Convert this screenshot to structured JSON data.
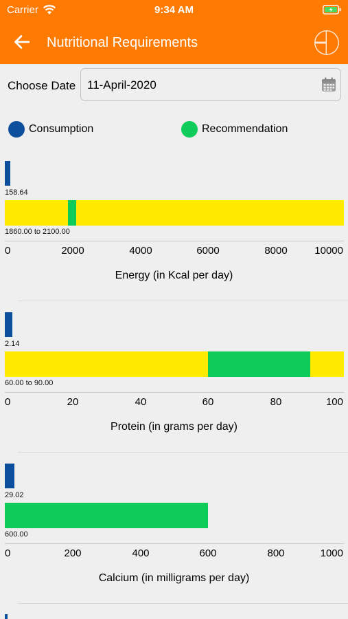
{
  "status_bar": {
    "carrier": "Carrier",
    "time": "9:34 AM"
  },
  "header": {
    "title": "Nutritional Requirements"
  },
  "date_picker": {
    "label": "Choose Date",
    "value": "11-April-2020"
  },
  "legend": {
    "consumption": "Consumption",
    "recommendation": "Recommendation"
  },
  "colors": {
    "header": "#ff7a00",
    "consumption": "#0d4f9c",
    "recommendation": "#0fcc5a",
    "range_background": "#ffea00"
  },
  "icons": [
    "back-arrow-icon",
    "pie-chart-icon",
    "calendar-icon",
    "wifi-icon",
    "battery-icon"
  ],
  "chart_data": [
    {
      "type": "bar",
      "xlabel": "Energy (in Kcal per day)",
      "xlim": [
        0,
        10000
      ],
      "ticks": [
        "0",
        "2000",
        "4000",
        "6000",
        "8000",
        "10000"
      ],
      "consumption": {
        "value": 158.64,
        "label": "158.64"
      },
      "recommendation": {
        "min": 1860,
        "max": 2100,
        "label": "1860.00 to 2100.00"
      }
    },
    {
      "type": "bar",
      "xlabel": "Protein (in grams per day)",
      "xlim": [
        0,
        100
      ],
      "ticks": [
        "0",
        "20",
        "40",
        "60",
        "80",
        "100"
      ],
      "consumption": {
        "value": 2.14,
        "label": "2.14"
      },
      "recommendation": {
        "min": 60,
        "max": 90,
        "label": "60.00 to 90.00"
      }
    },
    {
      "type": "bar",
      "xlabel": "Calcium (in milligrams per day)",
      "xlim": [
        0,
        1000
      ],
      "ticks": [
        "0",
        "200",
        "400",
        "600",
        "800",
        "1000"
      ],
      "consumption": {
        "value": 29.02,
        "label": "29.02"
      },
      "recommendation": {
        "min": 600,
        "max": 600,
        "label": "600.00"
      }
    }
  ]
}
